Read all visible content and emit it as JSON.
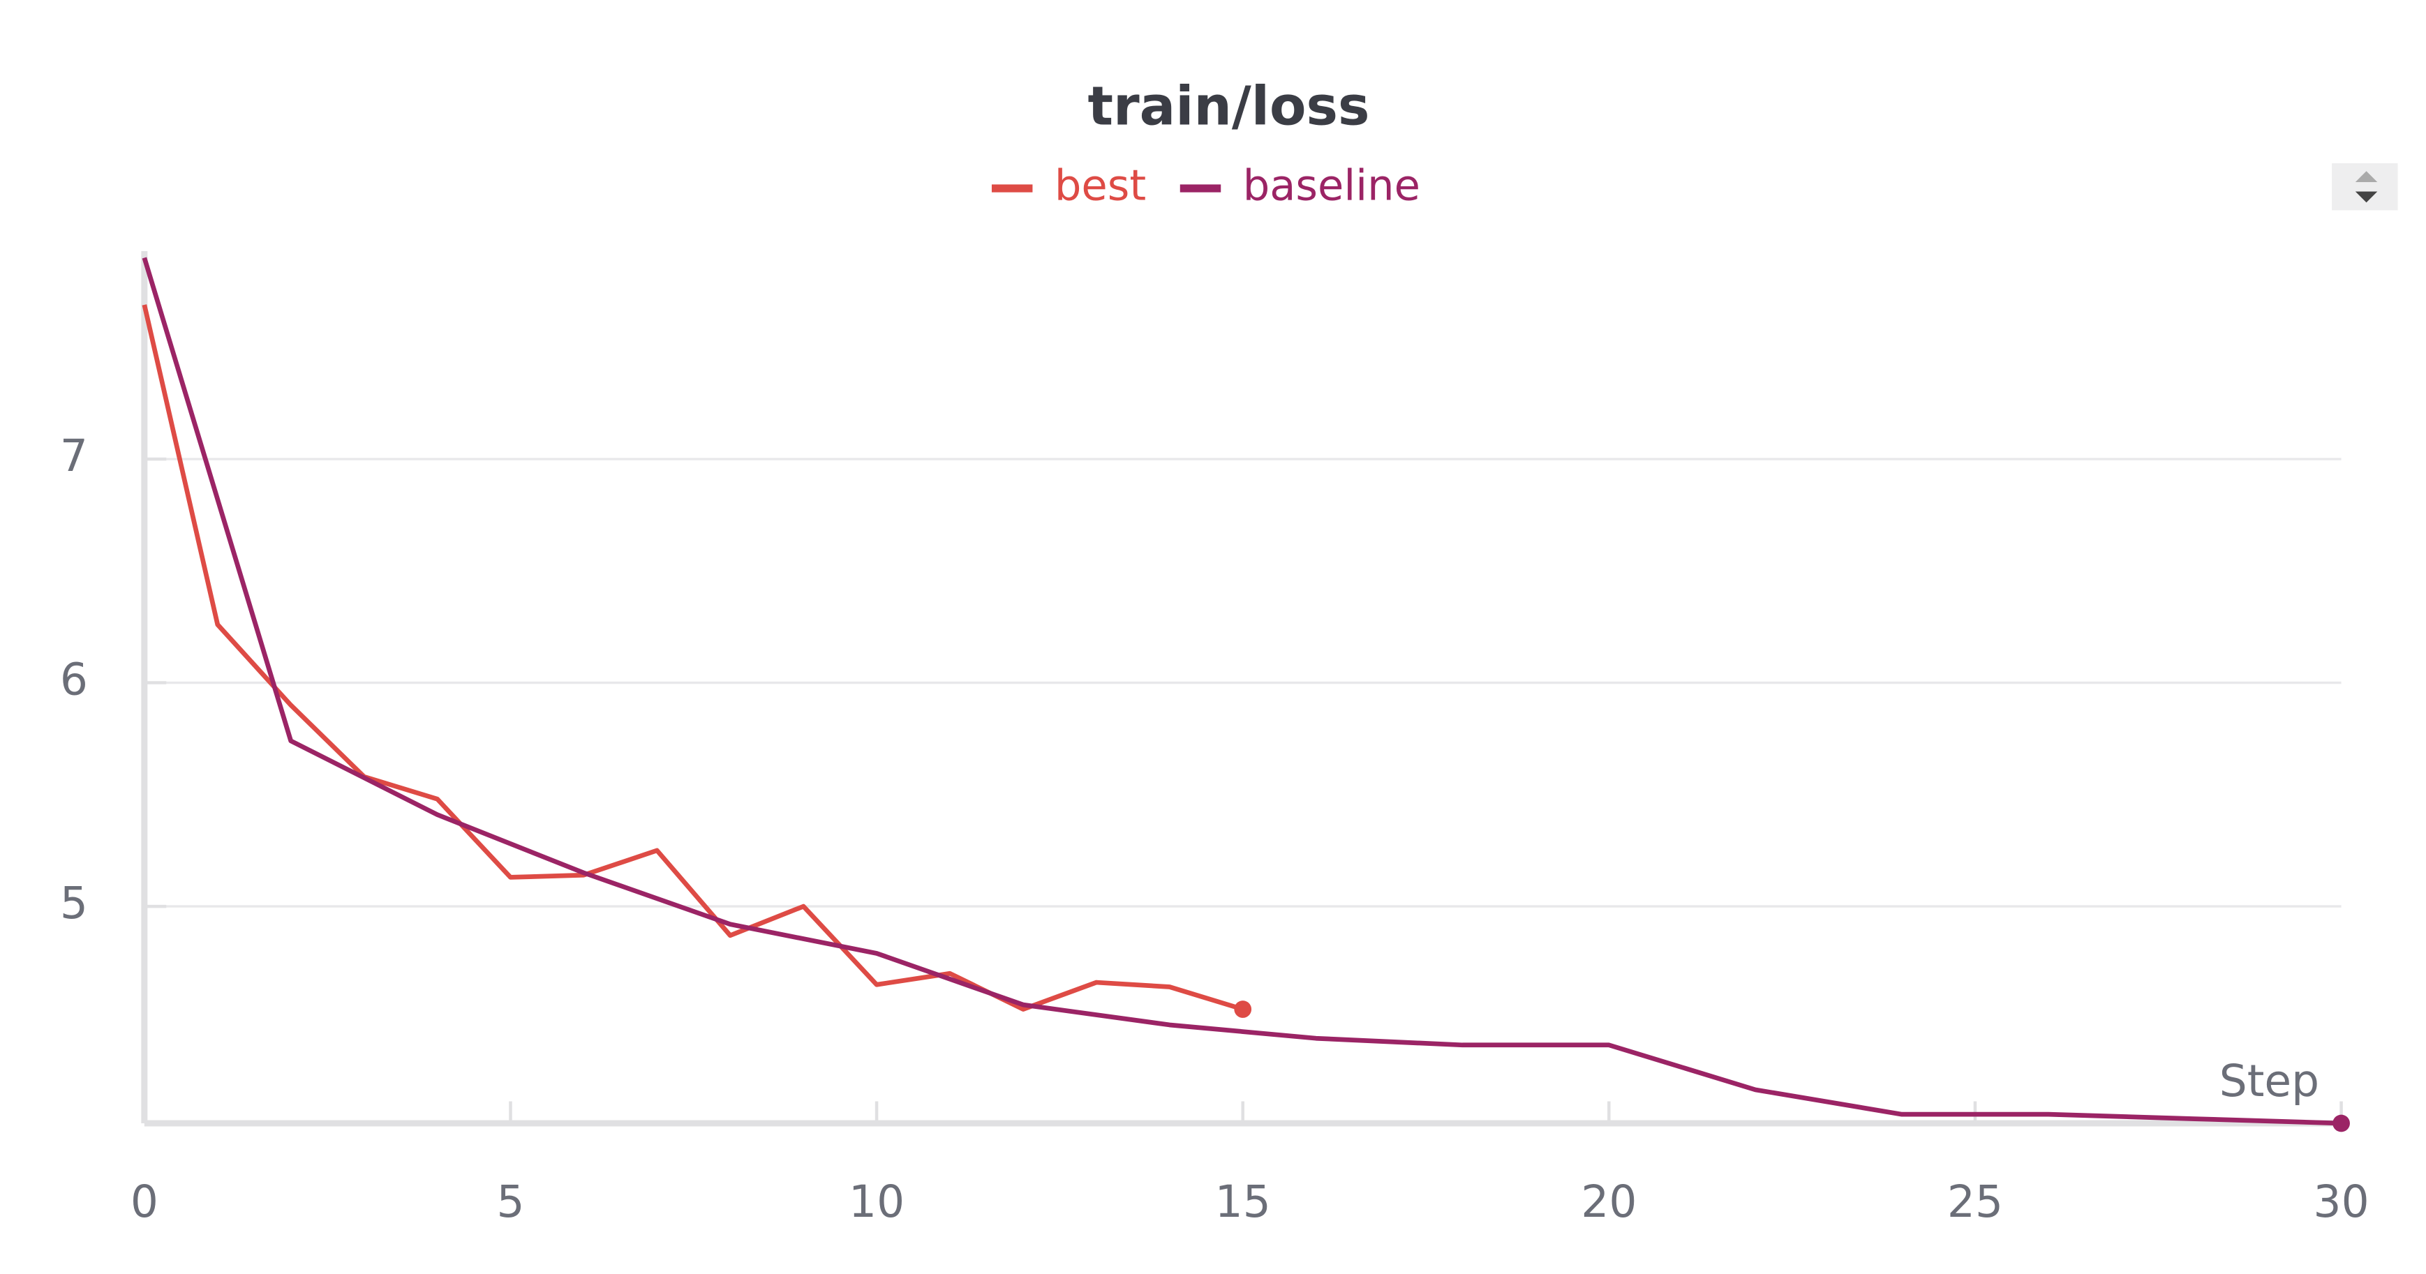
{
  "chart_data": {
    "type": "line",
    "title": "train/loss",
    "x_label": "Step",
    "series": [
      {
        "name": "best",
        "color": "#de4b45",
        "x": [
          0,
          1,
          2,
          3,
          4,
          5,
          6,
          7,
          8,
          9,
          10,
          11,
          12,
          13,
          14,
          15
        ],
        "values": [
          7.69,
          6.26,
          5.9,
          5.58,
          5.48,
          5.13,
          5.14,
          5.25,
          4.87,
          5.0,
          4.65,
          4.7,
          4.54,
          4.66,
          4.64,
          4.54
        ]
      },
      {
        "name": "baseline",
        "color": "#9b2465",
        "x": [
          0,
          2,
          4,
          6,
          8,
          10,
          12,
          14,
          16,
          18,
          20,
          22,
          24,
          26,
          28,
          30
        ],
        "values": [
          7.9,
          5.74,
          5.41,
          5.15,
          4.92,
          4.79,
          4.56,
          4.47,
          4.41,
          4.38,
          4.38,
          4.18,
          4.07,
          4.07,
          4.05,
          4.03
        ]
      }
    ],
    "xlim": [
      0,
      30
    ],
    "xticks": [
      0,
      5,
      10,
      15,
      20,
      25,
      30
    ],
    "ylim": [
      4.03,
      7.93
    ],
    "yticks": [
      5,
      6,
      7
    ],
    "grid": true
  }
}
